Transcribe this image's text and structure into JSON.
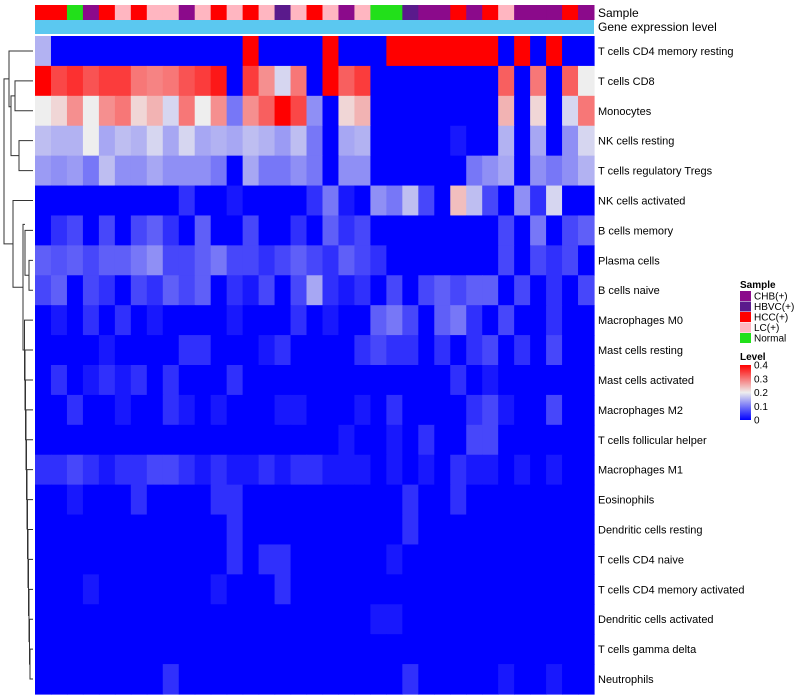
{
  "chart_data": {
    "type": "heatmap",
    "title": "",
    "annotation_labels": {
      "sample": "Sample",
      "gene": "Gene expression level"
    },
    "colors": {
      "low": "#0000FF",
      "mid": "#EEEEEE",
      "high": "#FF0000",
      "gene_bar": "#5BC8F0",
      "sample": {
        "CHB(+)": "#8B0A8B",
        "HBVC(+)": "#5A1A8C",
        "HCC(+)": "#FF0000",
        "LC(+)": "#FFB6C1",
        "Normal": "#22E01A"
      }
    },
    "rows": [
      "T cells CD4 memory resting",
      "T cells CD8",
      "Monocytes",
      "NK cells resting",
      "T cells regulatory  Tregs",
      "NK cells activated",
      "B cells memory",
      "Plasma cells",
      "B cells naive",
      "Macrophages M0",
      "Mast cells resting",
      "Mast cells activated",
      "Macrophages M2",
      "T cells follicular helper",
      "Macrophages M1",
      "Eosinophils",
      "Dendritic cells resting",
      "T cells CD4 naive",
      "T cells CD4 memory activated",
      "Dendritic cells activated",
      "T cells gamma delta",
      "Neutrophils"
    ],
    "sample_groups": [
      "HCC(+)",
      "HCC(+)",
      "Normal",
      "CHB(+)",
      "HCC(+)",
      "LC(+)",
      "HCC(+)",
      "LC(+)",
      "LC(+)",
      "CHB(+)",
      "LC(+)",
      "HCC(+)",
      "LC(+)",
      "HCC(+)",
      "LC(+)",
      "HBVC(+)",
      "LC(+)",
      "HCC(+)",
      "LC(+)",
      "CHB(+)",
      "LC(+)",
      "Normal",
      "Normal",
      "HBVC(+)",
      "CHB(+)",
      "CHB(+)",
      "HCC(+)",
      "CHB(+)",
      "HCC(+)",
      "LC(+)",
      "CHB(+)",
      "CHB(+)",
      "CHB(+)",
      "HCC(+)",
      "CHB(+)"
    ],
    "values": [
      [
        0.15,
        0.0,
        0.0,
        0.0,
        0.0,
        0.0,
        0.0,
        0.0,
        0.0,
        0.0,
        0.0,
        0.0,
        0.0,
        0.4,
        0.0,
        0.0,
        0.0,
        0.0,
        0.4,
        0.0,
        0.0,
        0.0,
        0.4,
        0.4,
        0.4,
        0.4,
        0.4,
        0.4,
        0.4,
        0.0,
        0.4,
        0.0,
        0.4,
        0.0,
        0.0
      ],
      [
        0.4,
        0.34,
        0.36,
        0.33,
        0.35,
        0.35,
        0.3,
        0.29,
        0.3,
        0.33,
        0.35,
        0.38,
        0.0,
        0.35,
        0.28,
        0.18,
        0.3,
        0.0,
        0.4,
        0.32,
        0.35,
        0.0,
        0.0,
        0.0,
        0.0,
        0.0,
        0.0,
        0.0,
        0.0,
        0.32,
        0.0,
        0.3,
        0.0,
        0.32,
        0.2
      ],
      [
        0.2,
        0.22,
        0.28,
        0.2,
        0.28,
        0.3,
        0.22,
        0.25,
        0.18,
        0.3,
        0.2,
        0.28,
        0.1,
        0.28,
        0.32,
        0.4,
        0.34,
        0.12,
        0.0,
        0.22,
        0.25,
        0.0,
        0.0,
        0.0,
        0.0,
        0.0,
        0.0,
        0.0,
        0.0,
        0.25,
        0.0,
        0.22,
        0.0,
        0.18,
        0.3
      ],
      [
        0.16,
        0.15,
        0.15,
        0.2,
        0.14,
        0.16,
        0.15,
        0.18,
        0.14,
        0.18,
        0.14,
        0.15,
        0.14,
        0.16,
        0.15,
        0.13,
        0.16,
        0.1,
        0.0,
        0.14,
        0.15,
        0.0,
        0.0,
        0.0,
        0.0,
        0.0,
        0.02,
        0.0,
        0.0,
        0.15,
        0.0,
        0.14,
        0.0,
        0.12,
        0.18
      ],
      [
        0.13,
        0.12,
        0.13,
        0.1,
        0.16,
        0.12,
        0.12,
        0.14,
        0.12,
        0.12,
        0.12,
        0.1,
        0.0,
        0.14,
        0.1,
        0.1,
        0.12,
        0.1,
        0.0,
        0.12,
        0.12,
        0.0,
        0.0,
        0.0,
        0.0,
        0.0,
        0.0,
        0.1,
        0.12,
        0.14,
        0.0,
        0.12,
        0.1,
        0.12,
        0.15
      ],
      [
        0.0,
        0.0,
        0.0,
        0.0,
        0.0,
        0.0,
        0.0,
        0.0,
        0.0,
        0.04,
        0.0,
        0.0,
        0.02,
        0.0,
        0.0,
        0.0,
        0.0,
        0.04,
        0.1,
        0.02,
        0.0,
        0.12,
        0.1,
        0.16,
        0.06,
        0.0,
        0.24,
        0.16,
        0.06,
        0.0,
        0.12,
        0.04,
        0.18,
        0.0,
        0.0
      ],
      [
        0.0,
        0.04,
        0.06,
        0.0,
        0.06,
        0.0,
        0.06,
        0.08,
        0.04,
        0.0,
        0.08,
        0.0,
        0.0,
        0.06,
        0.0,
        0.0,
        0.04,
        0.0,
        0.08,
        0.04,
        0.06,
        0.0,
        0.0,
        0.0,
        0.0,
        0.0,
        0.0,
        0.0,
        0.0,
        0.06,
        0.0,
        0.1,
        0.0,
        0.06,
        0.08
      ],
      [
        0.08,
        0.07,
        0.08,
        0.06,
        0.08,
        0.08,
        0.1,
        0.12,
        0.06,
        0.06,
        0.08,
        0.1,
        0.06,
        0.06,
        0.04,
        0.06,
        0.08,
        0.06,
        0.04,
        0.08,
        0.06,
        0.04,
        0.0,
        0.0,
        0.0,
        0.0,
        0.0,
        0.0,
        0.0,
        0.06,
        0.0,
        0.06,
        0.04,
        0.06,
        0.0
      ],
      [
        0.06,
        0.08,
        0.0,
        0.06,
        0.04,
        0.0,
        0.06,
        0.04,
        0.08,
        0.06,
        0.08,
        0.0,
        0.04,
        0.02,
        0.06,
        0.0,
        0.06,
        0.14,
        0.04,
        0.02,
        0.04,
        0.0,
        0.06,
        0.0,
        0.06,
        0.08,
        0.06,
        0.08,
        0.08,
        0.0,
        0.06,
        0.0,
        0.04,
        0.0,
        0.06
      ],
      [
        0.0,
        0.02,
        0.0,
        0.04,
        0.0,
        0.04,
        0.0,
        0.02,
        0.0,
        0.0,
        0.0,
        0.0,
        0.02,
        0.0,
        0.0,
        0.0,
        0.04,
        0.0,
        0.02,
        0.0,
        0.0,
        0.08,
        0.1,
        0.06,
        0.0,
        0.08,
        0.1,
        0.04,
        0.0,
        0.06,
        0.0,
        0.0,
        0.04,
        0.0,
        0.0
      ],
      [
        0.0,
        0.0,
        0.0,
        0.0,
        0.02,
        0.0,
        0.0,
        0.0,
        0.0,
        0.04,
        0.04,
        0.0,
        0.0,
        0.0,
        0.02,
        0.04,
        0.0,
        0.0,
        0.0,
        0.0,
        0.04,
        0.06,
        0.04,
        0.04,
        0.0,
        0.04,
        0.0,
        0.04,
        0.06,
        0.0,
        0.04,
        0.0,
        0.06,
        0.0,
        0.0
      ],
      [
        0.0,
        0.04,
        0.0,
        0.02,
        0.04,
        0.02,
        0.04,
        0.0,
        0.04,
        0.0,
        0.0,
        0.0,
        0.04,
        0.0,
        0.0,
        0.0,
        0.0,
        0.0,
        0.0,
        0.0,
        0.0,
        0.0,
        0.0,
        0.0,
        0.0,
        0.0,
        0.04,
        0.0,
        0.02,
        0.0,
        0.0,
        0.0,
        0.0,
        0.0,
        0.0
      ],
      [
        0.0,
        0.0,
        0.04,
        0.0,
        0.0,
        0.02,
        0.0,
        0.0,
        0.04,
        0.02,
        0.0,
        0.02,
        0.0,
        0.0,
        0.0,
        0.02,
        0.02,
        0.0,
        0.0,
        0.0,
        0.02,
        0.0,
        0.04,
        0.0,
        0.0,
        0.0,
        0.0,
        0.04,
        0.06,
        0.02,
        0.0,
        0.0,
        0.06,
        0.0,
        0.0
      ],
      [
        0.0,
        0.0,
        0.0,
        0.0,
        0.0,
        0.0,
        0.0,
        0.0,
        0.0,
        0.0,
        0.0,
        0.0,
        0.0,
        0.0,
        0.0,
        0.0,
        0.0,
        0.0,
        0.0,
        0.02,
        0.0,
        0.0,
        0.02,
        0.0,
        0.04,
        0.0,
        0.0,
        0.06,
        0.06,
        0.0,
        0.0,
        0.0,
        0.0,
        0.0,
        0.0
      ],
      [
        0.04,
        0.04,
        0.06,
        0.04,
        0.02,
        0.04,
        0.04,
        0.06,
        0.06,
        0.04,
        0.02,
        0.04,
        0.02,
        0.02,
        0.04,
        0.02,
        0.04,
        0.04,
        0.02,
        0.02,
        0.02,
        0.0,
        0.02,
        0.0,
        0.02,
        0.0,
        0.04,
        0.02,
        0.02,
        0.0,
        0.02,
        0.0,
        0.02,
        0.0,
        0.0
      ],
      [
        0.0,
        0.0,
        0.02,
        0.0,
        0.0,
        0.0,
        0.04,
        0.0,
        0.0,
        0.0,
        0.0,
        0.04,
        0.04,
        0.0,
        0.0,
        0.0,
        0.0,
        0.0,
        0.0,
        0.0,
        0.0,
        0.0,
        0.0,
        0.04,
        0.0,
        0.0,
        0.04,
        0.0,
        0.0,
        0.0,
        0.0,
        0.0,
        0.0,
        0.0,
        0.0
      ],
      [
        0.0,
        0.0,
        0.0,
        0.0,
        0.0,
        0.0,
        0.0,
        0.0,
        0.0,
        0.0,
        0.0,
        0.0,
        0.04,
        0.0,
        0.0,
        0.0,
        0.0,
        0.0,
        0.0,
        0.0,
        0.0,
        0.0,
        0.0,
        0.04,
        0.0,
        0.0,
        0.0,
        0.0,
        0.0,
        0.0,
        0.0,
        0.0,
        0.0,
        0.0,
        0.0
      ],
      [
        0.0,
        0.0,
        0.0,
        0.0,
        0.0,
        0.0,
        0.0,
        0.0,
        0.0,
        0.0,
        0.0,
        0.0,
        0.04,
        0.0,
        0.04,
        0.04,
        0.0,
        0.0,
        0.0,
        0.0,
        0.0,
        0.0,
        0.02,
        0.0,
        0.0,
        0.0,
        0.0,
        0.0,
        0.0,
        0.0,
        0.0,
        0.0,
        0.0,
        0.0,
        0.0
      ],
      [
        0.0,
        0.0,
        0.0,
        0.02,
        0.0,
        0.0,
        0.0,
        0.0,
        0.0,
        0.0,
        0.0,
        0.02,
        0.0,
        0.0,
        0.0,
        0.04,
        0.0,
        0.0,
        0.0,
        0.0,
        0.0,
        0.0,
        0.0,
        0.0,
        0.0,
        0.0,
        0.0,
        0.0,
        0.0,
        0.0,
        0.0,
        0.0,
        0.0,
        0.0,
        0.0
      ],
      [
        0.0,
        0.0,
        0.0,
        0.0,
        0.0,
        0.0,
        0.0,
        0.0,
        0.0,
        0.0,
        0.0,
        0.0,
        0.0,
        0.0,
        0.0,
        0.0,
        0.0,
        0.0,
        0.0,
        0.0,
        0.0,
        0.02,
        0.02,
        0.0,
        0.0,
        0.0,
        0.0,
        0.0,
        0.0,
        0.0,
        0.0,
        0.0,
        0.0,
        0.0,
        0.0
      ],
      [
        0.0,
        0.0,
        0.0,
        0.0,
        0.0,
        0.0,
        0.0,
        0.0,
        0.0,
        0.0,
        0.0,
        0.0,
        0.0,
        0.0,
        0.0,
        0.0,
        0.0,
        0.0,
        0.0,
        0.0,
        0.0,
        0.0,
        0.0,
        0.0,
        0.0,
        0.0,
        0.0,
        0.0,
        0.0,
        0.0,
        0.0,
        0.0,
        0.0,
        0.0,
        0.0
      ],
      [
        0.0,
        0.0,
        0.0,
        0.0,
        0.0,
        0.0,
        0.0,
        0.0,
        0.04,
        0.0,
        0.0,
        0.0,
        0.0,
        0.0,
        0.0,
        0.0,
        0.0,
        0.0,
        0.0,
        0.0,
        0.0,
        0.0,
        0.0,
        0.04,
        0.0,
        0.0,
        0.0,
        0.0,
        0.0,
        0.02,
        0.0,
        0.0,
        0.02,
        0.0,
        0.0
      ]
    ],
    "legend": {
      "sample_title": "Sample",
      "sample_entries": [
        "CHB(+)",
        "HBVC(+)",
        "HCC(+)",
        "LC(+)",
        "Normal"
      ],
      "level_title": "Level",
      "level_range": [
        0,
        0.4
      ],
      "level_ticks": [
        "0.4",
        "0.3",
        "0.2",
        "0.1",
        "0"
      ]
    }
  }
}
